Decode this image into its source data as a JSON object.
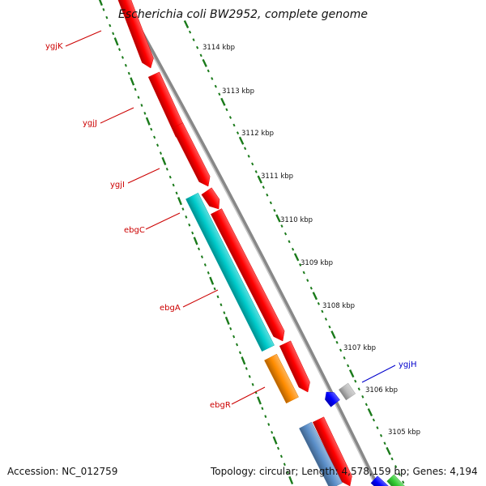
{
  "title": "Escherichia coli BW2952, complete genome",
  "footer": {
    "accession": "Accession: NC_012759",
    "summary": "Topology: circular; Length: 4,578,159 bp; Genes: 4,194"
  },
  "colors": {
    "backbone": "#888888",
    "tick": "#1a7a1a",
    "gene_red": "#ff0000",
    "gene_cyan": "#00cccc",
    "gene_orange": "#ff8c00",
    "gene_blue": "#0000ff",
    "gene_gray": "#bbbbbb",
    "gene_steelblue": "#5b8fc9",
    "gene_green": "#33cc33",
    "label_red": "#cc0000",
    "label_blue": "#0000cc"
  },
  "scale": {
    "unit": "kbp",
    "ticks": [
      "3114 kbp",
      "3113 kbp",
      "3112 kbp",
      "3111 kbp",
      "3110 kbp",
      "3109 kbp",
      "3108 kbp",
      "3107 kbp",
      "3106 kbp",
      "3105 kbp"
    ]
  },
  "gene_labels": [
    {
      "name": "ygjK",
      "color": "#cc0000"
    },
    {
      "name": "ygjJ",
      "color": "#cc0000"
    },
    {
      "name": "ygjI",
      "color": "#cc0000"
    },
    {
      "name": "ebgC",
      "color": "#cc0000"
    },
    {
      "name": "ebgA",
      "color": "#cc0000"
    },
    {
      "name": "ebgR",
      "color": "#cc0000"
    },
    {
      "name": "ygjH",
      "color": "#0000cc"
    }
  ]
}
